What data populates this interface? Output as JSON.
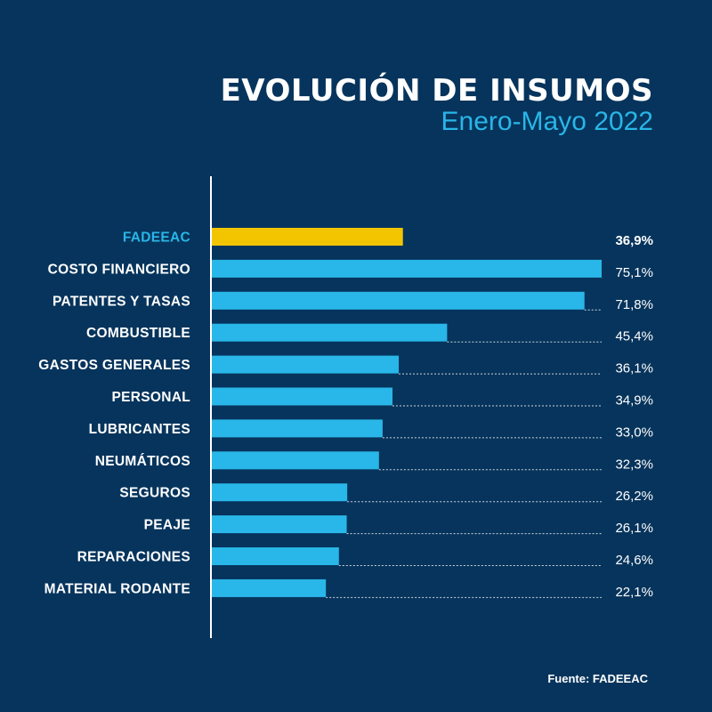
{
  "header": {
    "title": "EVOLUCIÓN DE INSUMOS",
    "subtitle": "Enero-Mayo 2022"
  },
  "footer": {
    "source": "Fuente: FADEEAC"
  },
  "colors": {
    "background": "#06345c",
    "highlight_bar": "#f2c500",
    "bar": "#29b6e8",
    "highlight_label": "#29b6e8",
    "text": "#ffffff"
  },
  "chart_data": {
    "type": "bar",
    "orientation": "horizontal",
    "highlight": "FADEEAC",
    "categories": [
      "FADEEAC",
      "COSTO FINANCIERO",
      "PATENTES Y TASAS",
      "COMBUSTIBLE",
      "GASTOS GENERALES",
      "PERSONAL",
      "LUBRICANTES",
      "NEUMÁTICOS",
      "SEGUROS",
      "PEAJE",
      "REPARACIONES",
      "MATERIAL RODANTE"
    ],
    "values": [
      36.9,
      75.1,
      71.8,
      45.4,
      36.1,
      34.9,
      33.0,
      32.3,
      26.2,
      26.1,
      24.6,
      22.1
    ],
    "value_labels": [
      "36,9%",
      "75,1%",
      "71,8%",
      "45,4%",
      "36,1%",
      "34,9%",
      "33,0%",
      "32,3%",
      "26,2%",
      "26,1%",
      "24,6%",
      "22,1%"
    ],
    "xlim": [
      0,
      75.1
    ],
    "grid": false,
    "legend": false
  }
}
